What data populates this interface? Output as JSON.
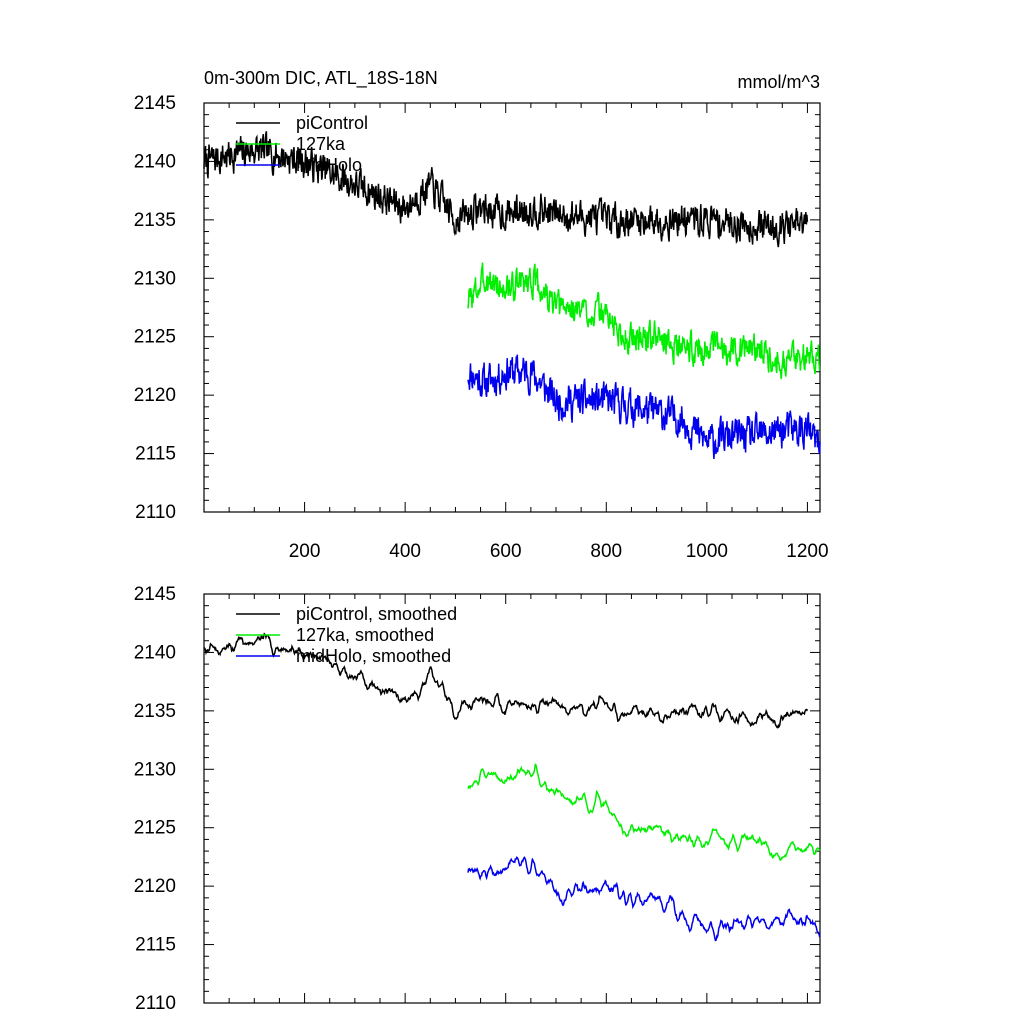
{
  "figure": {
    "title_left": "0m-300m DIC, ATL_18S-18N",
    "units": "mmol/m^3"
  },
  "colors": {
    "piControl": "#000000",
    "127ka": "#00ee00",
    "midHolo": "#0000ee"
  },
  "chart_data": [
    {
      "type": "line",
      "title": "0m-300m DIC, ATL_18S-18N",
      "ylabel": "mmol/m^3",
      "xlim": [
        0,
        1225
      ],
      "ylim": [
        2110,
        2145
      ],
      "xticks": [
        200,
        400,
        600,
        800,
        1000,
        1200
      ],
      "yticks": [
        2110,
        2115,
        2120,
        2125,
        2130,
        2135,
        2140,
        2145
      ],
      "show_xtick_labels": true,
      "legend": "top-left",
      "smoothed": false,
      "series": [
        {
          "name": "piControl",
          "color": "#000000",
          "x_range": [
            0,
            1200
          ],
          "anchors": [
            [
              0,
              2140
            ],
            [
              50,
              2140.5
            ],
            [
              100,
              2141
            ],
            [
              150,
              2140.5
            ],
            [
              200,
              2140
            ],
            [
              300,
              2138
            ],
            [
              400,
              2136
            ],
            [
              450,
              2138
            ],
            [
              500,
              2135
            ],
            [
              550,
              2136
            ],
            [
              600,
              2135.5
            ],
            [
              650,
              2136
            ],
            [
              700,
              2135.5
            ],
            [
              800,
              2135
            ],
            [
              900,
              2135
            ],
            [
              1000,
              2135
            ],
            [
              1100,
              2134.5
            ],
            [
              1200,
              2134.5
            ]
          ],
          "noise": 1.2,
          "seed": 7
        },
        {
          "name": "127ka",
          "color": "#00ee00",
          "x_range": [
            525,
            1225
          ],
          "anchors": [
            [
              525,
              2128
            ],
            [
              560,
              2130
            ],
            [
              600,
              2129
            ],
            [
              650,
              2130
            ],
            [
              700,
              2127.5
            ],
            [
              800,
              2127
            ],
            [
              830,
              2125
            ],
            [
              900,
              2125
            ],
            [
              950,
              2124
            ],
            [
              1000,
              2124
            ],
            [
              1100,
              2124
            ],
            [
              1150,
              2123
            ],
            [
              1225,
              2123.5
            ]
          ],
          "noise": 1.1,
          "seed": 3
        },
        {
          "name": "midHolo",
          "color": "#0000ee",
          "x_range": [
            525,
            1225
          ],
          "anchors": [
            [
              525,
              2122
            ],
            [
              560,
              2121
            ],
            [
              600,
              2122
            ],
            [
              650,
              2122
            ],
            [
              700,
              2119.5
            ],
            [
              800,
              2119.5
            ],
            [
              900,
              2118.5
            ],
            [
              950,
              2118
            ],
            [
              1000,
              2116
            ],
            [
              1050,
              2116.5
            ],
            [
              1100,
              2116.5
            ],
            [
              1150,
              2117
            ],
            [
              1200,
              2117
            ],
            [
              1225,
              2115.5
            ]
          ],
          "noise": 1.3,
          "seed": 11
        }
      ]
    },
    {
      "type": "line",
      "title": "",
      "xlim": [
        0,
        1225
      ],
      "ylim": [
        2110,
        2145
      ],
      "xticks": [
        200,
        400,
        600,
        800,
        1000,
        1200
      ],
      "yticks": [
        2110,
        2115,
        2120,
        2125,
        2130,
        2135,
        2140,
        2145
      ],
      "show_xtick_labels": false,
      "legend": "top-left",
      "smoothed": true,
      "series": [
        {
          "name": "piControl, smoothed",
          "color": "#000000",
          "x_range": [
            0,
            1200
          ],
          "anchors": [
            [
              0,
              2140
            ],
            [
              50,
              2140.5
            ],
            [
              100,
              2141
            ],
            [
              150,
              2140.5
            ],
            [
              200,
              2140
            ],
            [
              300,
              2138
            ],
            [
              400,
              2136
            ],
            [
              450,
              2138
            ],
            [
              500,
              2135
            ],
            [
              550,
              2136
            ],
            [
              600,
              2135.5
            ],
            [
              650,
              2136
            ],
            [
              700,
              2135.5
            ],
            [
              800,
              2135
            ],
            [
              900,
              2135
            ],
            [
              1000,
              2135
            ],
            [
              1100,
              2134.5
            ],
            [
              1200,
              2134.5
            ]
          ],
          "noise": 1.2,
          "seed": 7
        },
        {
          "name": "127ka, smoothed",
          "color": "#00ee00",
          "x_range": [
            525,
            1225
          ],
          "anchors": [
            [
              525,
              2128
            ],
            [
              560,
              2130
            ],
            [
              600,
              2129
            ],
            [
              650,
              2130
            ],
            [
              700,
              2127.5
            ],
            [
              800,
              2127
            ],
            [
              830,
              2125
            ],
            [
              900,
              2125
            ],
            [
              950,
              2124
            ],
            [
              1000,
              2124
            ],
            [
              1100,
              2124
            ],
            [
              1150,
              2123
            ],
            [
              1225,
              2123.5
            ]
          ],
          "noise": 1.1,
          "seed": 3
        },
        {
          "name": "midHolo, smoothed",
          "color": "#0000ee",
          "x_range": [
            525,
            1225
          ],
          "anchors": [
            [
              525,
              2122
            ],
            [
              560,
              2121
            ],
            [
              600,
              2122
            ],
            [
              650,
              2122
            ],
            [
              700,
              2119.5
            ],
            [
              800,
              2119.5
            ],
            [
              900,
              2118.5
            ],
            [
              950,
              2118
            ],
            [
              1000,
              2116
            ],
            [
              1050,
              2116.5
            ],
            [
              1100,
              2116.5
            ],
            [
              1150,
              2117
            ],
            [
              1200,
              2117
            ],
            [
              1225,
              2115.5
            ]
          ],
          "noise": 1.3,
          "seed": 11
        }
      ]
    }
  ]
}
